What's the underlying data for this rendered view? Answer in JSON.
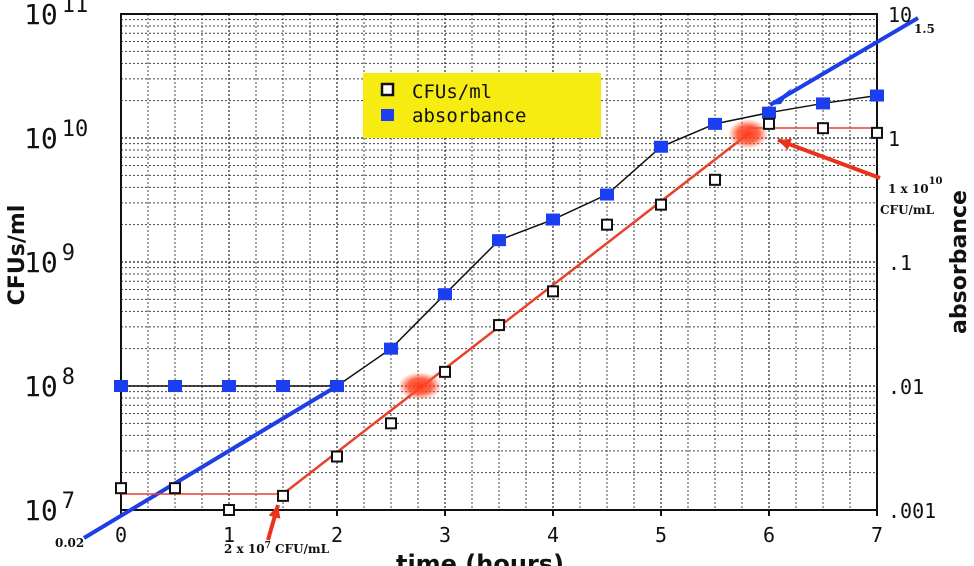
{
  "chart_data": {
    "type": "scatter",
    "xlabel": "time (hours)",
    "ylabel": "CFUs/ml",
    "y2label": "absorbance",
    "xlim": [
      0,
      7
    ],
    "ylim": [
      10000000,
      100000000000
    ],
    "y2lim": [
      0.001,
      10
    ],
    "yscale": "log",
    "y2scale": "log",
    "grid": true,
    "legend_position": "top-center",
    "x_ticks": [
      "0",
      "1",
      "2",
      "3",
      "4",
      "5",
      "6",
      "7"
    ],
    "y_ticks": [
      {
        "value": 10000000,
        "base": "10",
        "exp": "7"
      },
      {
        "value": 100000000,
        "base": "10",
        "exp": "8"
      },
      {
        "value": 1000000000,
        "base": "10",
        "exp": "9"
      },
      {
        "value": 10000000000,
        "base": "10",
        "exp": "10"
      },
      {
        "value": 100000000000,
        "base": "10",
        "exp": "11"
      }
    ],
    "y2_ticks": [
      {
        "value": 0.001,
        "label": ".001"
      },
      {
        "value": 0.01,
        "label": ".01"
      },
      {
        "value": 0.1,
        "label": ".1"
      },
      {
        "value": 1,
        "label": "1"
      },
      {
        "value": 10,
        "label": "10"
      }
    ],
    "series": [
      {
        "name": "CFUs/ml",
        "axis": "left",
        "marker": "hollow-square",
        "color": "#111111",
        "x": [
          0,
          0.5,
          1,
          1.5,
          2,
          2.5,
          3,
          3.5,
          4,
          4.5,
          5,
          5.5,
          6,
          6.5,
          7
        ],
        "values": [
          15000000,
          15000000,
          10000000,
          13000000,
          27000000,
          50000000,
          130000000,
          310000000,
          580000000,
          2000000000,
          2900000000,
          4600000000,
          13000000000,
          12000000000,
          11000000000
        ]
      },
      {
        "name": "absorbance",
        "axis": "right",
        "marker": "filled-square",
        "color": "#1a3ef0",
        "x": [
          0,
          0.5,
          1,
          1.5,
          2,
          2.5,
          3,
          3.5,
          4,
          4.5,
          5,
          5.5,
          6,
          6.5,
          7
        ],
        "values": [
          0.01,
          0.01,
          0.01,
          0.01,
          0.01,
          0.02,
          0.055,
          0.15,
          0.22,
          0.35,
          0.85,
          1.3,
          1.6,
          1.9,
          2.2
        ]
      }
    ],
    "annotations": {
      "start_abs": "0.02",
      "end_abs": "1.5",
      "start_cfu_base": "2 x 10",
      "start_cfu_exp": "7",
      "start_cfu_unit": " CFU/mL",
      "end_cfu_base": "1 x 10",
      "end_cfu_exp": "10",
      "end_cfu_unit": "CFU/mL"
    },
    "colors": {
      "blue_line": "#1f3fe6",
      "red_line": "#e8412c",
      "red_dot": "#f24a2a",
      "legend_bg": "#f7ec12",
      "grid": "#444444"
    }
  }
}
